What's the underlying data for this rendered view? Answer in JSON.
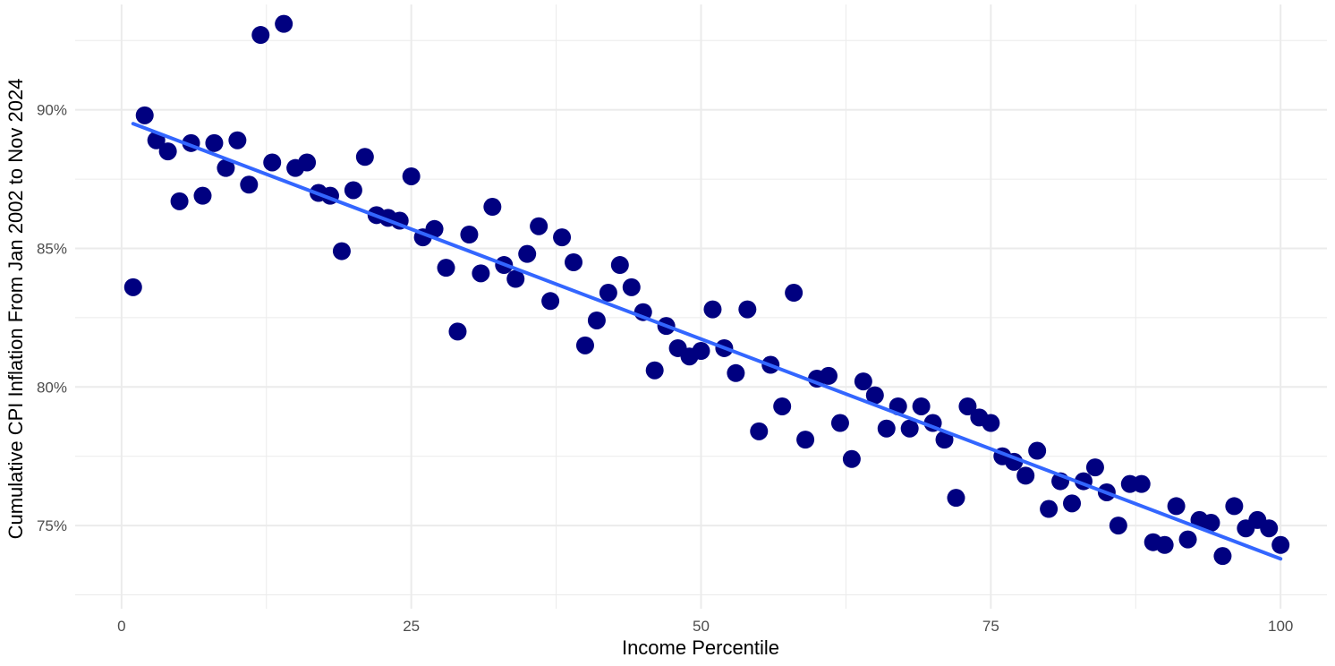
{
  "chart_data": {
    "type": "scatter",
    "title": "",
    "xlabel": "Income Percentile",
    "ylabel": "Cumulative CPI Inflation From Jan 2002 to Nov 2024",
    "xlim": [
      -4,
      104
    ],
    "ylim": [
      72,
      93.8
    ],
    "x_ticks": [
      0,
      25,
      50,
      75,
      100
    ],
    "x_tick_labels": [
      "0",
      "25",
      "50",
      "75",
      "100"
    ],
    "y_ticks": [
      75,
      80,
      85,
      90
    ],
    "y_tick_labels": [
      "75%",
      "80%",
      "85%",
      "90%"
    ],
    "grid": true,
    "legend": "none",
    "colors": {
      "points": "#000080",
      "trend_line": "#3366ff",
      "grid": "#ebebeb"
    },
    "points": {
      "x": [
        1,
        2,
        3,
        4,
        5,
        6,
        7,
        8,
        9,
        10,
        11,
        12,
        13,
        14,
        15,
        16,
        17,
        18,
        19,
        20,
        21,
        22,
        23,
        24,
        25,
        26,
        27,
        28,
        29,
        30,
        31,
        32,
        33,
        34,
        35,
        36,
        37,
        38,
        39,
        40,
        41,
        42,
        43,
        44,
        45,
        46,
        47,
        48,
        49,
        50,
        51,
        52,
        53,
        54,
        55,
        56,
        57,
        58,
        59,
        60,
        61,
        62,
        63,
        64,
        65,
        66,
        67,
        68,
        69,
        70,
        71,
        72,
        73,
        74,
        75,
        76,
        77,
        78,
        79,
        80,
        81,
        82,
        83,
        84,
        85,
        86,
        87,
        88,
        89,
        90,
        91,
        92,
        93,
        94,
        95,
        96,
        97,
        98,
        99,
        100
      ],
      "y": [
        83.6,
        89.8,
        88.9,
        88.5,
        86.7,
        88.8,
        86.9,
        88.8,
        87.9,
        88.9,
        87.3,
        92.7,
        88.1,
        93.1,
        87.9,
        88.1,
        87.0,
        86.9,
        84.9,
        87.1,
        88.3,
        86.2,
        86.1,
        86.0,
        87.6,
        85.4,
        85.7,
        84.3,
        82.0,
        85.5,
        84.1,
        86.5,
        84.4,
        83.9,
        84.8,
        85.8,
        83.1,
        85.4,
        84.5,
        81.5,
        82.4,
        83.4,
        84.4,
        83.6,
        82.7,
        80.6,
        82.2,
        81.4,
        81.1,
        81.3,
        82.8,
        81.4,
        80.5,
        82.8,
        78.4,
        80.8,
        79.3,
        83.4,
        78.1,
        80.3,
        80.4,
        78.7,
        77.4,
        80.2,
        79.7,
        78.5,
        79.3,
        78.5,
        79.3,
        78.7,
        78.1,
        76.0,
        79.3,
        78.9,
        78.7,
        77.5,
        77.3,
        76.8,
        77.7,
        75.6,
        76.6,
        75.8,
        76.6,
        77.1,
        76.2,
        75.0,
        76.5,
        76.5,
        74.4,
        74.3,
        75.7,
        74.5,
        75.2,
        75.1,
        73.9,
        75.7,
        74.9,
        75.2,
        74.9,
        74.3
      ]
    },
    "trend_line": {
      "x": [
        1,
        100
      ],
      "y": [
        89.5,
        73.8
      ]
    }
  }
}
